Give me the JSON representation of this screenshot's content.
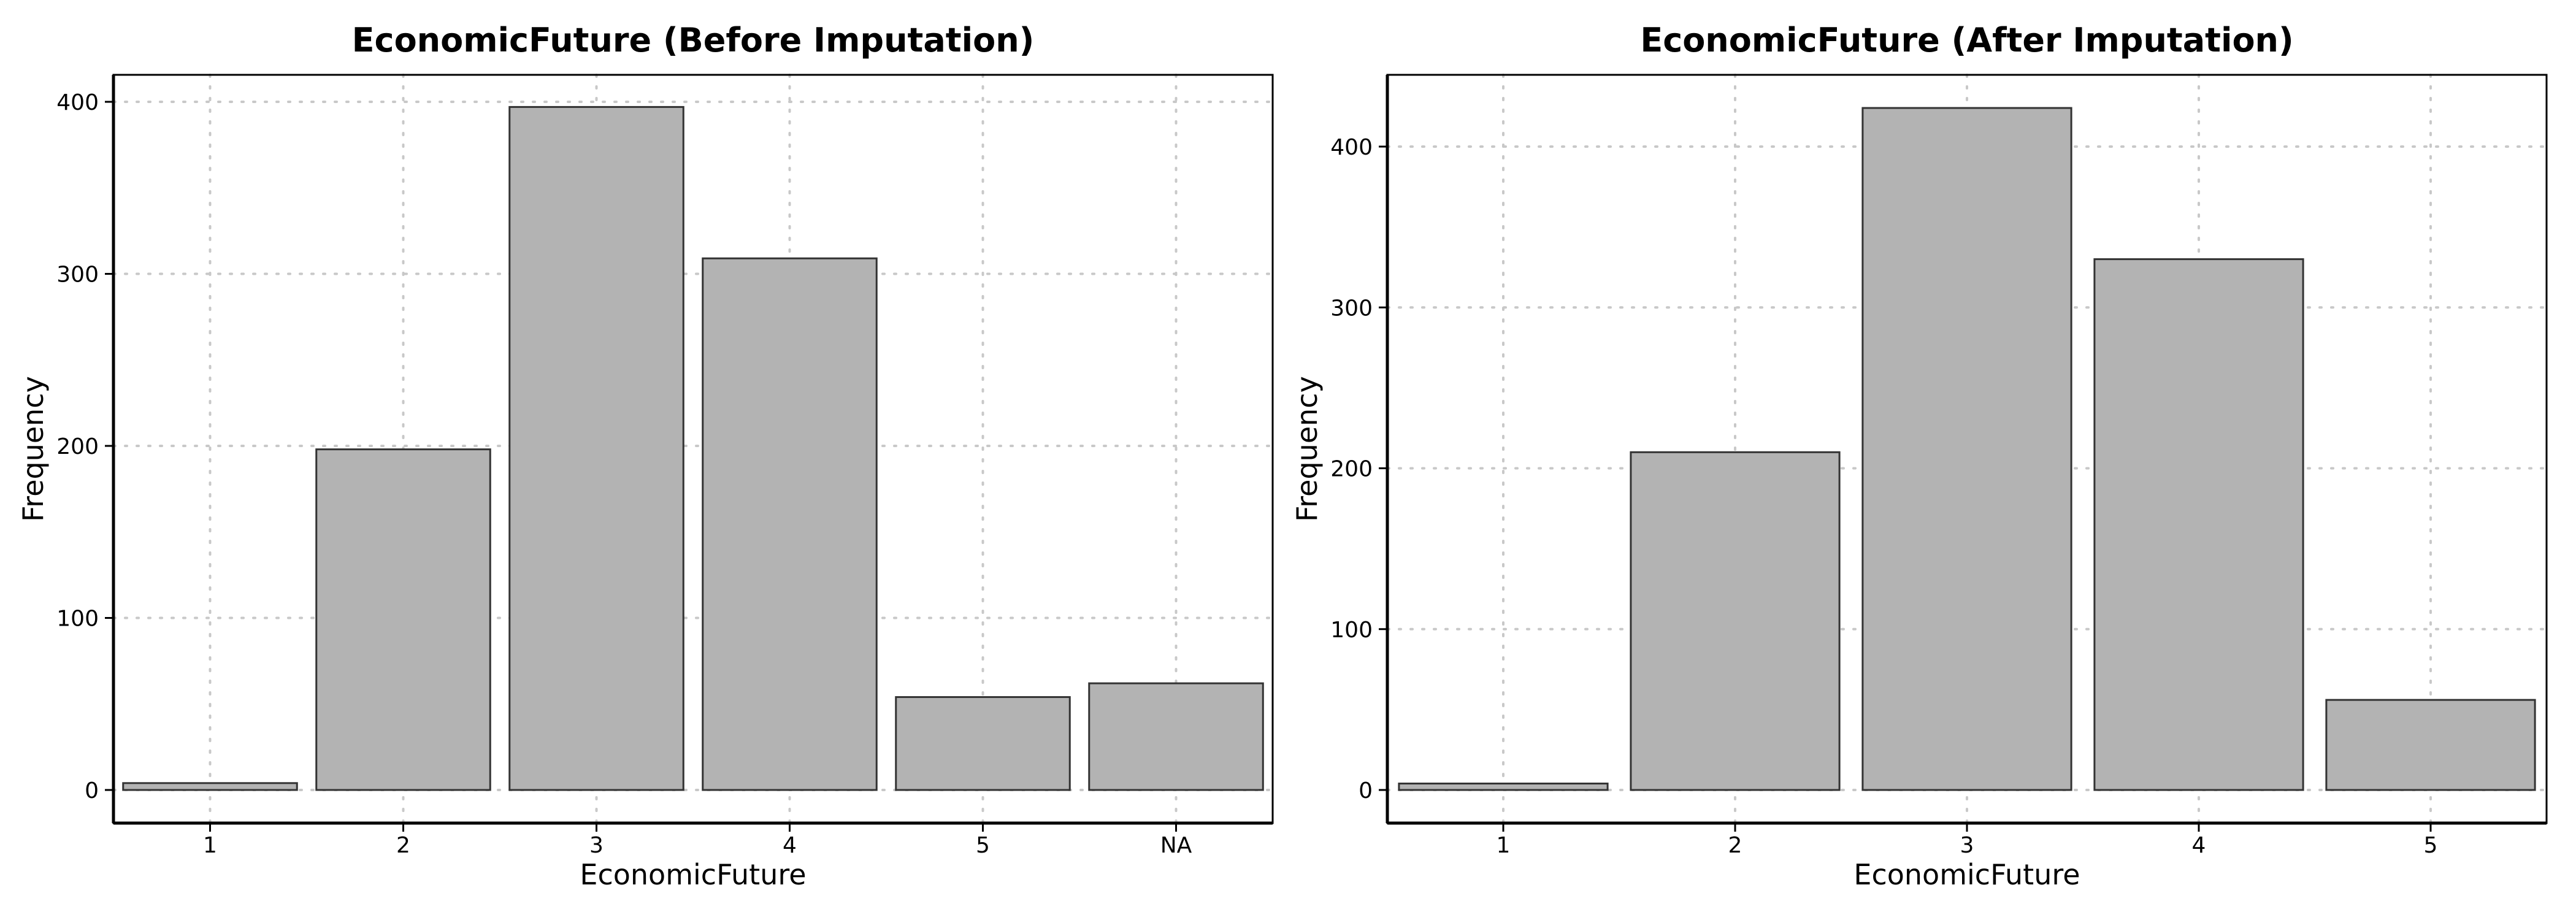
{
  "chart_data": [
    {
      "type": "bar",
      "title": "EconomicFuture (Before Imputation)",
      "xlabel": "EconomicFuture",
      "ylabel": "Frequency",
      "categories": [
        "1",
        "2",
        "3",
        "4",
        "5",
        "NA"
      ],
      "values": [
        4,
        198,
        397,
        309,
        54,
        62
      ],
      "ylim": [
        0,
        400
      ],
      "yticks": [
        0,
        100,
        200,
        300,
        400
      ],
      "grid": true,
      "bar_color": "#b3b3b3",
      "edge_color": "#333333"
    },
    {
      "type": "bar",
      "title": "EconomicFuture (After Imputation)",
      "xlabel": "EconomicFuture",
      "ylabel": "Frequency",
      "categories": [
        "1",
        "2",
        "3",
        "4",
        "5"
      ],
      "values": [
        4,
        210,
        424,
        330,
        56
      ],
      "ylim": [
        0,
        400
      ],
      "yticks": [
        0,
        100,
        200,
        300,
        400
      ],
      "grid": true,
      "bar_color": "#b3b3b3",
      "edge_color": "#333333"
    }
  ]
}
